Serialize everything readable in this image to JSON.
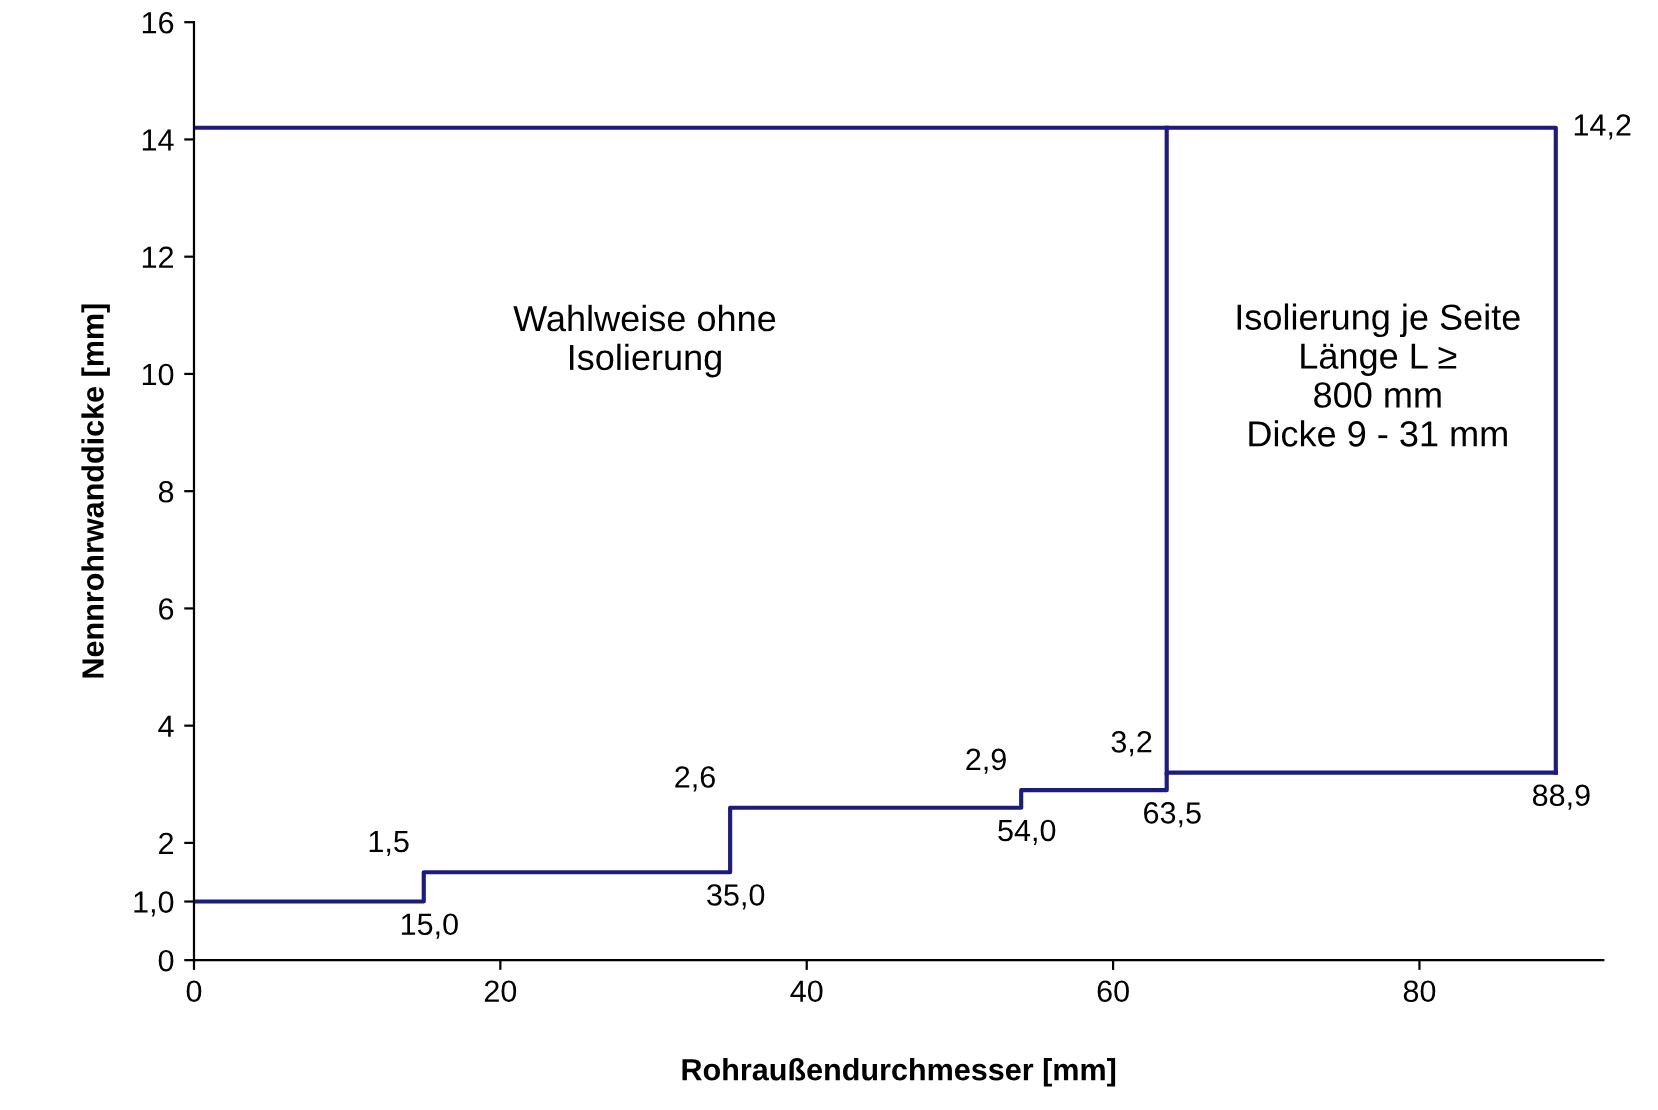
{
  "chart_data": {
    "type": "step",
    "xlabel": "Rohraußendurchmesser [mm]",
    "ylabel": "Nennrohrwanddicke [mm]",
    "xlim": [
      0,
      92
    ],
    "xticks": [
      0,
      20,
      40,
      60,
      80
    ],
    "ylim": [
      0,
      16
    ],
    "yticks": [
      0,
      {
        "value": 1,
        "label": "1,0"
      },
      2,
      4,
      6,
      8,
      10,
      12,
      14,
      16
    ],
    "grid": false,
    "marker": "none",
    "line_style": "solid",
    "series": [
      {
        "color": "#1c1c80",
        "x": [
          0,
          15,
          35,
          54,
          63.5,
          88.9
        ],
        "values": [
          1.0,
          1.5,
          2.6,
          2.9,
          3.2,
          3.2
        ],
        "value_labels": [
          null,
          "1,5",
          "2,6",
          "2,9",
          "3,2",
          null
        ]
      },
      {
        "type": "line",
        "color": "#1c1c80",
        "x": [
          0,
          88.9,
          88.9
        ],
        "values": [
          14.2,
          14.2,
          3.2
        ]
      },
      {
        "type": "line",
        "color": "#1c1c80",
        "x": [
          63.5,
          63.5
        ],
        "values": [
          3.2,
          14.2
        ]
      }
    ],
    "annotations": [
      {
        "text": "15,0",
        "x": 15,
        "y": 1.0
      },
      {
        "text": "35,0",
        "x": 35,
        "y": 1.5
      },
      {
        "text": "54,0",
        "x": 54,
        "y": 2.6
      },
      {
        "text": "63,5",
        "x": 63.5,
        "y": 2.9
      },
      {
        "text": "88,9",
        "x": 88.9,
        "y": 3.2
      },
      {
        "text": "14,2",
        "x": 88.9,
        "y": 14.2
      },
      "Wahlweise ohne\nIsolierung",
      "Isolierung je Seite\nLänge L ≥\n800 mm\nDicke 9 - 31 mm"
    ]
  }
}
